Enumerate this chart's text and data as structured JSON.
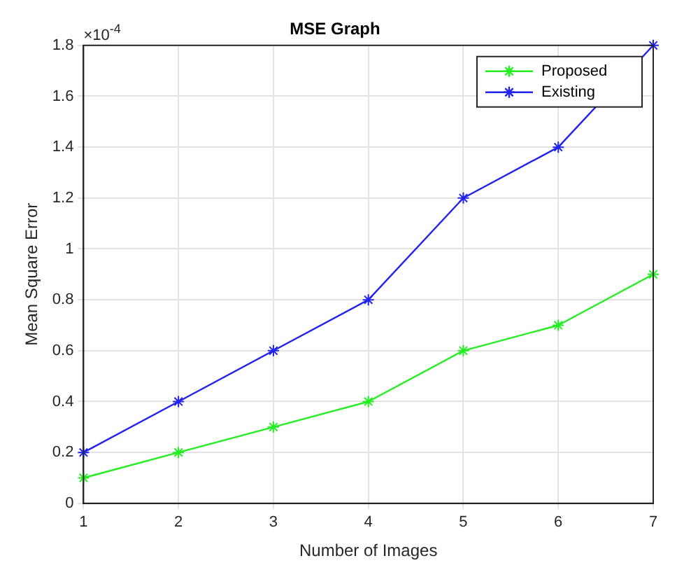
{
  "chart_data": {
    "type": "line",
    "title": "MSE Graph",
    "xlabel": "Number of Images",
    "ylabel": "Mean Square Error",
    "annotations": [
      "×10$^{-4}$"
    ],
    "x": [
      1,
      2,
      3,
      4,
      5,
      6,
      7
    ],
    "xlim": [
      1,
      7
    ],
    "xticks": [
      1,
      2,
      3,
      4,
      5,
      6,
      7
    ],
    "ylim": [
      0,
      1.8
    ],
    "yticks": [
      0,
      0.2,
      0.4,
      0.6,
      0.8,
      1,
      1.2,
      1.4,
      1.6,
      1.8
    ],
    "series": [
      {
        "name": "Proposed",
        "color": "#22ee22",
        "values": [
          0.1,
          0.2,
          0.3,
          0.4,
          0.6,
          0.7,
          0.9
        ]
      },
      {
        "name": "Existing",
        "color": "#2222ee",
        "values": [
          0.2,
          0.4,
          0.6,
          0.8,
          1.2,
          1.4,
          1.8
        ]
      }
    ],
    "grid": true,
    "legend": "top right",
    "marker": "cross",
    "line_style": "solid"
  }
}
